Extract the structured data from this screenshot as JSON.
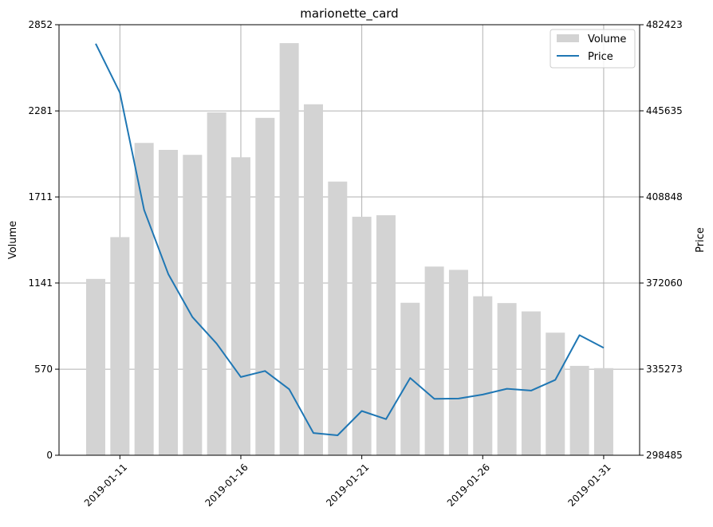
{
  "chart_data": {
    "type": "bar",
    "title": "marionette_card",
    "xlabel": "",
    "ylabel_left": "Volume",
    "ylabel_right": "Price",
    "grid": true,
    "legend_placement": "top-right",
    "dates": [
      "2019-01-10",
      "2019-01-11",
      "2019-01-12",
      "2019-01-13",
      "2019-01-14",
      "2019-01-15",
      "2019-01-16",
      "2019-01-17",
      "2019-01-18",
      "2019-01-19",
      "2019-01-20",
      "2019-01-21",
      "2019-01-22",
      "2019-01-23",
      "2019-01-24",
      "2019-01-25",
      "2019-01-26",
      "2019-01-27",
      "2019-01-28",
      "2019-01-29",
      "2019-01-30",
      "2019-01-31"
    ],
    "x_ticks": [
      "2019-01-11",
      "2019-01-16",
      "2019-01-21",
      "2019-01-26",
      "2019-01-31"
    ],
    "volume_axis": {
      "ylim": [
        0,
        2852
      ],
      "ticks": [
        "0",
        "570",
        "1141",
        "1711",
        "2281",
        "2852"
      ]
    },
    "price_axis": {
      "ylim": [
        298485,
        482423
      ],
      "ticks": [
        "298485",
        "335273",
        "372060",
        "408848",
        "445635",
        "482423"
      ]
    },
    "series": [
      {
        "name": "Volume",
        "kind": "bar",
        "color": "#d3d3d3",
        "values": [
          1168,
          1445,
          2069,
          2023,
          1990,
          2271,
          1974,
          2235,
          2730,
          2325,
          1813,
          1580,
          1590,
          1010,
          1250,
          1228,
          1053,
          1008,
          953,
          812,
          592,
          577
        ]
      },
      {
        "name": "Price",
        "kind": "line",
        "color": "#1f77b4",
        "values": [
          474300,
          453400,
          403300,
          375900,
          357500,
          346200,
          331900,
          334500,
          326700,
          308000,
          307000,
          317400,
          313900,
          331500,
          322600,
          322700,
          324400,
          326900,
          326100,
          330700,
          349800,
          344400
        ]
      }
    ]
  }
}
